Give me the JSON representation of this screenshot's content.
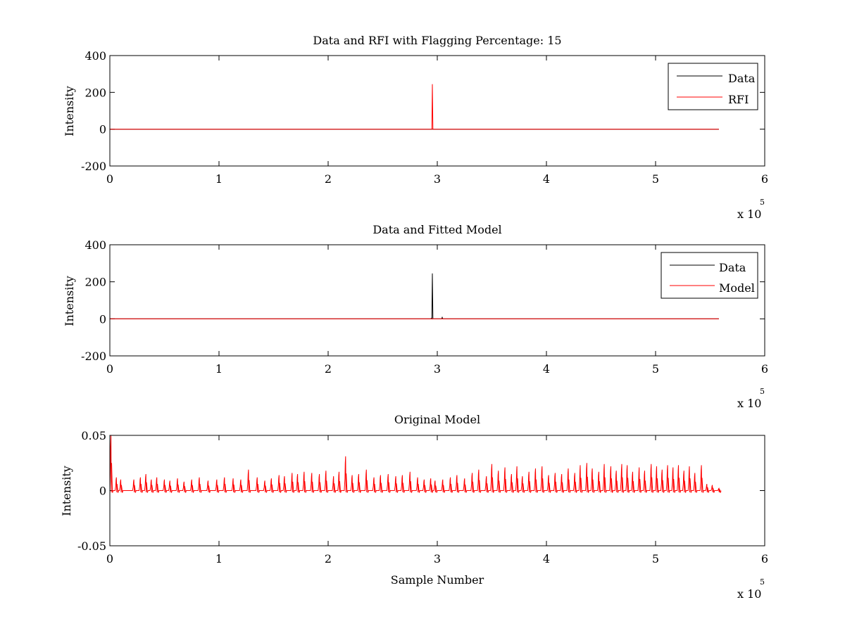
{
  "colors": {
    "data": "#000000",
    "rfi": "#ff0000",
    "model": "#ff0000",
    "axes": "#000000",
    "background": "#ffffff"
  },
  "chart_data": [
    {
      "type": "line",
      "title": "Data and RFI with Flagging Percentage: 15",
      "xlabel": "",
      "ylabel": "Intensity",
      "xlim": [
        0,
        6
      ],
      "ylim": [
        -200,
        400
      ],
      "xticks": [
        "0",
        "1",
        "2",
        "3",
        "4",
        "5",
        "6"
      ],
      "yticks": [
        "-200",
        "0",
        "200",
        "400"
      ],
      "x_multiplier_base": "x 10",
      "x_multiplier_exp": "5",
      "legend": {
        "placement": "top-right",
        "entries": [
          "Data",
          "RFI"
        ]
      },
      "series": [
        {
          "name": "Data",
          "color": "#000000",
          "x": [
            0,
            5.58
          ],
          "y": [
            0,
            0
          ]
        },
        {
          "name": "RFI",
          "color": "#ff0000",
          "x": [
            0,
            2.95,
            2.955,
            2.96,
            5.58
          ],
          "y": [
            0,
            0,
            245,
            0,
            0
          ]
        }
      ],
      "grid": false
    },
    {
      "type": "line",
      "title": "Data and Fitted Model",
      "xlabel": "",
      "ylabel": "Intensity",
      "xlim": [
        0,
        6
      ],
      "ylim": [
        -200,
        400
      ],
      "xticks": [
        "0",
        "1",
        "2",
        "3",
        "4",
        "5",
        "6"
      ],
      "yticks": [
        "-200",
        "0",
        "200",
        "400"
      ],
      "x_multiplier_base": "x 10",
      "x_multiplier_exp": "5",
      "legend": {
        "placement": "top-right",
        "entries": [
          "Data",
          "Model"
        ]
      },
      "series": [
        {
          "name": "Data",
          "color": "#000000",
          "x": [
            0,
            2.94,
            2.945,
            2.95,
            2.955,
            2.96,
            3.04,
            3.045,
            3.05,
            5.58
          ],
          "y": [
            0,
            0,
            3,
            0,
            245,
            0,
            0,
            8,
            0,
            0
          ]
        },
        {
          "name": "Model",
          "color": "#ff0000",
          "x": [
            0,
            5.58
          ],
          "y": [
            0,
            0
          ]
        }
      ],
      "grid": false
    },
    {
      "type": "line",
      "title": "Original Model",
      "xlabel": "Sample Number",
      "ylabel": "Intensity",
      "xlim": [
        0,
        6
      ],
      "ylim": [
        -0.05,
        0.05
      ],
      "xticks": [
        "0",
        "1",
        "2",
        "3",
        "4",
        "5",
        "6"
      ],
      "yticks": [
        "-0.05",
        "0",
        "0.05"
      ],
      "x_multiplier_base": "x 10",
      "x_multiplier_exp": "5",
      "series": [
        {
          "name": "",
          "color": "#ff0000",
          "peaks": [
            [
              0.01,
              0.05
            ],
            [
              0.06,
              0.012
            ],
            [
              0.1,
              0.01
            ],
            [
              0.22,
              0.01
            ],
            [
              0.28,
              0.012
            ],
            [
              0.33,
              0.015
            ],
            [
              0.38,
              0.01
            ],
            [
              0.43,
              0.012
            ],
            [
              0.5,
              0.01
            ],
            [
              0.55,
              0.009
            ],
            [
              0.62,
              0.011
            ],
            [
              0.68,
              0.008
            ],
            [
              0.75,
              0.01
            ],
            [
              0.82,
              0.012
            ],
            [
              0.9,
              0.009
            ],
            [
              0.98,
              0.01
            ],
            [
              1.05,
              0.012
            ],
            [
              1.13,
              0.011
            ],
            [
              1.2,
              0.01
            ],
            [
              1.27,
              0.019
            ],
            [
              1.35,
              0.012
            ],
            [
              1.42,
              0.009
            ],
            [
              1.48,
              0.011
            ],
            [
              1.55,
              0.014
            ],
            [
              1.6,
              0.013
            ],
            [
              1.67,
              0.016
            ],
            [
              1.72,
              0.015
            ],
            [
              1.78,
              0.017
            ],
            [
              1.85,
              0.016
            ],
            [
              1.92,
              0.015
            ],
            [
              1.98,
              0.018
            ],
            [
              2.05,
              0.013
            ],
            [
              2.1,
              0.017
            ],
            [
              2.16,
              0.031
            ],
            [
              2.22,
              0.014
            ],
            [
              2.28,
              0.015
            ],
            [
              2.35,
              0.019
            ],
            [
              2.42,
              0.012
            ],
            [
              2.48,
              0.014
            ],
            [
              2.55,
              0.015
            ],
            [
              2.62,
              0.013
            ],
            [
              2.68,
              0.014
            ],
            [
              2.75,
              0.017
            ],
            [
              2.82,
              0.012
            ],
            [
              2.88,
              0.01
            ],
            [
              2.94,
              0.011
            ],
            [
              2.98,
              0.009
            ],
            [
              3.05,
              0.01
            ],
            [
              3.12,
              0.012
            ],
            [
              3.18,
              0.014
            ],
            [
              3.25,
              0.011
            ],
            [
              3.32,
              0.016
            ],
            [
              3.38,
              0.019
            ],
            [
              3.45,
              0.013
            ],
            [
              3.5,
              0.024
            ],
            [
              3.56,
              0.018
            ],
            [
              3.62,
              0.021
            ],
            [
              3.68,
              0.015
            ],
            [
              3.73,
              0.022
            ],
            [
              3.78,
              0.013
            ],
            [
              3.84,
              0.017
            ],
            [
              3.9,
              0.02
            ],
            [
              3.96,
              0.022
            ],
            [
              4.02,
              0.014
            ],
            [
              4.08,
              0.016
            ],
            [
              4.14,
              0.015
            ],
            [
              4.2,
              0.02
            ],
            [
              4.26,
              0.016
            ],
            [
              4.31,
              0.023
            ],
            [
              4.37,
              0.025
            ],
            [
              4.42,
              0.02
            ],
            [
              4.48,
              0.017
            ],
            [
              4.53,
              0.024
            ],
            [
              4.59,
              0.022
            ],
            [
              4.64,
              0.018
            ],
            [
              4.69,
              0.024
            ],
            [
              4.74,
              0.023
            ],
            [
              4.79,
              0.017
            ],
            [
              4.85,
              0.021
            ],
            [
              4.9,
              0.018
            ],
            [
              4.96,
              0.024
            ],
            [
              5.01,
              0.022
            ],
            [
              5.06,
              0.019
            ],
            [
              5.11,
              0.023
            ],
            [
              5.16,
              0.021
            ],
            [
              5.21,
              0.023
            ],
            [
              5.26,
              0.018
            ],
            [
              5.31,
              0.022
            ],
            [
              5.36,
              0.016
            ],
            [
              5.42,
              0.023
            ],
            [
              5.47,
              0.006
            ],
            [
              5.52,
              0.005
            ],
            [
              5.58,
              0.002
            ]
          ]
        }
      ],
      "grid": false
    }
  ]
}
